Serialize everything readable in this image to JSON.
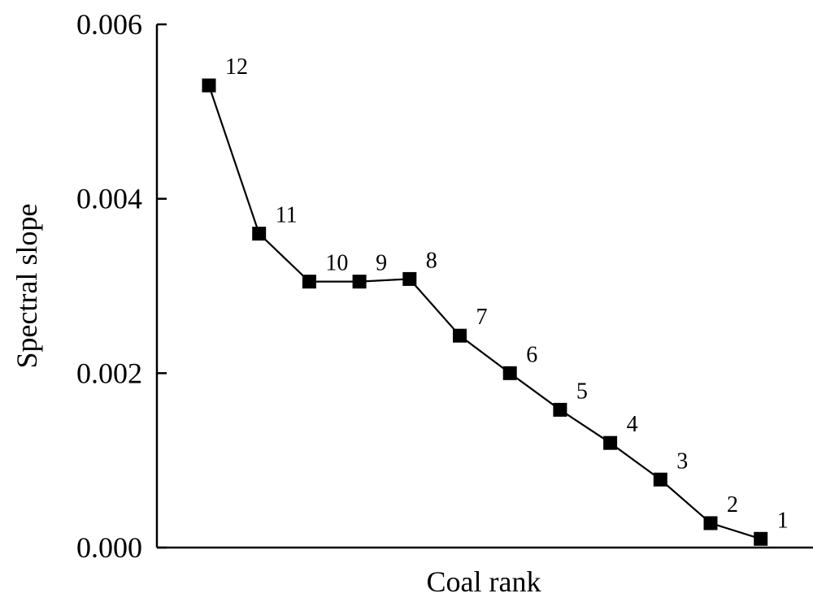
{
  "chart_data": {
    "type": "line",
    "title": "",
    "xlabel": "Coal rank",
    "ylabel": "Spectral slope",
    "ylim": [
      0,
      0.006
    ],
    "yticks": [
      "0.000",
      "0.002",
      "0.004",
      "0.006"
    ],
    "grid": false,
    "legend": "none",
    "series": [
      {
        "marker": "square",
        "color": "#000000",
        "points": [
          {
            "label": "12",
            "y": 0.0053
          },
          {
            "label": "11",
            "y": 0.0036
          },
          {
            "label": "10",
            "y": 0.00305
          },
          {
            "label": "9",
            "y": 0.00305
          },
          {
            "label": "8",
            "y": 0.00308
          },
          {
            "label": "7",
            "y": 0.00243
          },
          {
            "label": "6",
            "y": 0.002
          },
          {
            "label": "5",
            "y": 0.00158
          },
          {
            "label": "4",
            "y": 0.0012
          },
          {
            "label": "3",
            "y": 0.00078
          },
          {
            "label": "2",
            "y": 0.00028
          },
          {
            "label": "1",
            "y": 0.0001
          }
        ]
      }
    ]
  }
}
